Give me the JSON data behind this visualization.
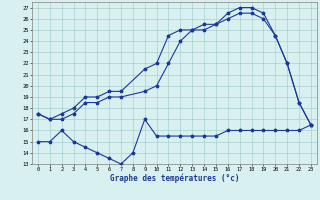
{
  "line1_x": [
    0,
    1,
    2,
    3,
    4,
    5,
    6,
    7,
    9,
    10,
    11,
    12,
    13,
    14,
    15,
    16,
    17,
    18,
    19,
    20,
    21,
    22,
    23
  ],
  "line1_y": [
    17.5,
    17.0,
    17.5,
    18.0,
    19.0,
    19.0,
    19.5,
    19.5,
    21.5,
    22.0,
    24.5,
    25.0,
    25.0,
    25.5,
    25.5,
    26.5,
    27.0,
    27.0,
    26.5,
    24.5,
    22.0,
    18.5,
    16.5
  ],
  "line2_x": [
    0,
    1,
    2,
    3,
    4,
    5,
    6,
    7,
    9,
    10,
    11,
    12,
    13,
    14,
    15,
    16,
    17,
    18,
    19,
    20,
    21,
    22,
    23
  ],
  "line2_y": [
    17.5,
    17.0,
    17.0,
    17.5,
    18.5,
    18.5,
    19.0,
    19.0,
    19.5,
    20.0,
    22.0,
    24.0,
    25.0,
    25.0,
    25.5,
    26.0,
    26.5,
    26.5,
    26.0,
    24.5,
    22.0,
    18.5,
    16.5
  ],
  "line3_x": [
    0,
    1,
    2,
    3,
    4,
    5,
    6,
    7,
    8,
    9,
    10,
    11,
    12,
    13,
    14,
    15,
    16,
    17,
    18,
    19,
    20,
    21,
    22,
    23
  ],
  "line3_y": [
    15.0,
    15.0,
    16.0,
    15.0,
    14.5,
    14.0,
    13.5,
    13.0,
    14.0,
    17.0,
    15.5,
    15.5,
    15.5,
    15.5,
    15.5,
    15.5,
    16.0,
    16.0,
    16.0,
    16.0,
    16.0,
    16.0,
    16.0,
    16.5
  ],
  "bg_color": "#d8f0f0",
  "grid_color": "#a0c8c8",
  "line_color": "#1a3a9a",
  "xlabel": "Graphe des températures (°c)",
  "ylabel_ticks": [
    13,
    14,
    15,
    16,
    17,
    18,
    19,
    20,
    21,
    22,
    23,
    24,
    25,
    26,
    27
  ],
  "xlim": [
    -0.5,
    23.5
  ],
  "ylim": [
    13,
    27.5
  ],
  "xticks": [
    0,
    1,
    2,
    3,
    4,
    5,
    6,
    7,
    8,
    9,
    10,
    11,
    12,
    13,
    14,
    15,
    16,
    17,
    18,
    19,
    20,
    21,
    22,
    23
  ]
}
